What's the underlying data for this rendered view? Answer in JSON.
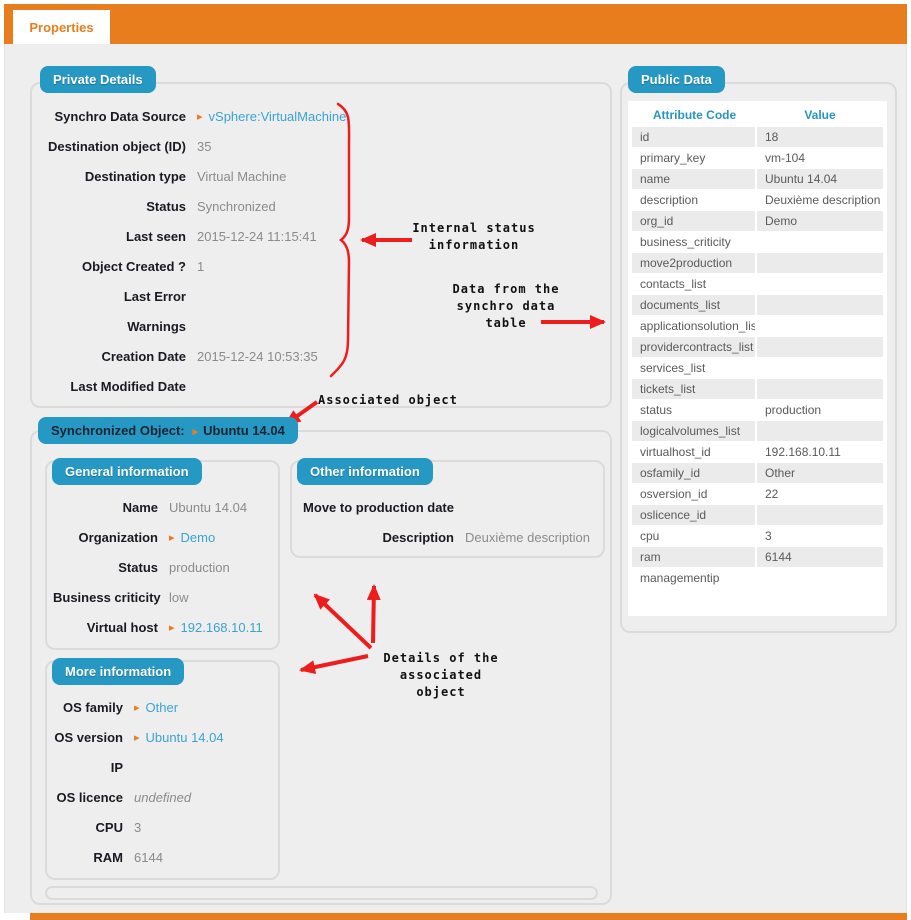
{
  "tab": {
    "label": "Properties"
  },
  "icons": {
    "link_arrow": "▸"
  },
  "colors": {
    "orange": "#e87d1e",
    "badge_blue": "#2698c4",
    "link_blue": "#3aa3d3",
    "table_header_blue": "#2596be",
    "annotation_red": "#ee1d1d"
  },
  "private_details": {
    "title": "Private Details",
    "fields": [
      {
        "label": "Synchro Data Source",
        "value": "vSphere:VirtualMachine",
        "link": true
      },
      {
        "label": "Destination object (ID)",
        "value": "35"
      },
      {
        "label": "Destination type",
        "value": "Virtual Machine"
      },
      {
        "label": "Status",
        "value": "Synchronized"
      },
      {
        "label": "Last seen",
        "value": "2015-12-24 11:15:41"
      },
      {
        "label": "Object Created ?",
        "value": "1"
      },
      {
        "label": "Last Error",
        "value": ""
      },
      {
        "label": "Warnings",
        "value": ""
      },
      {
        "label": "Creation Date",
        "value": "2015-12-24 10:53:35"
      },
      {
        "label": "Last Modified Date",
        "value": ""
      }
    ]
  },
  "synchronized_object": {
    "title": "Synchronized Object:",
    "object_name": "Ubuntu 14.04",
    "general_information": {
      "title": "General information",
      "fields": [
        {
          "label": "Name",
          "value": "Ubuntu 14.04"
        },
        {
          "label": "Organization",
          "value": "Demo",
          "link": true
        },
        {
          "label": "Status",
          "value": "production"
        },
        {
          "label": "Business criticity",
          "value": "low"
        },
        {
          "label": "Virtual host",
          "value": "192.168.10.11",
          "link": true
        }
      ]
    },
    "other_information": {
      "title": "Other information",
      "fields": [
        {
          "label": "Move to production date",
          "value": ""
        },
        {
          "label": "Description",
          "value": "Deuxième description"
        }
      ]
    },
    "more_information": {
      "title": "More information",
      "fields": [
        {
          "label": "OS family",
          "value": "Other",
          "link": true
        },
        {
          "label": "OS version",
          "value": "Ubuntu 14.04",
          "link": true
        },
        {
          "label": "IP",
          "value": ""
        },
        {
          "label": "OS licence",
          "value": "undefined",
          "italic": true
        },
        {
          "label": "CPU",
          "value": "3"
        },
        {
          "label": "RAM",
          "value": "6144"
        }
      ]
    }
  },
  "public_data": {
    "title": "Public Data",
    "columns": [
      "Attribute Code",
      "Value"
    ],
    "rows": [
      [
        "id",
        "18"
      ],
      [
        "primary_key",
        "vm-104"
      ],
      [
        "name",
        "Ubuntu 14.04"
      ],
      [
        "description",
        "Deuxième description"
      ],
      [
        "org_id",
        "Demo"
      ],
      [
        "business_criticity",
        ""
      ],
      [
        "move2production",
        ""
      ],
      [
        "contacts_list",
        ""
      ],
      [
        "documents_list",
        ""
      ],
      [
        "applicationsolution_list",
        ""
      ],
      [
        "providercontracts_list",
        ""
      ],
      [
        "services_list",
        ""
      ],
      [
        "tickets_list",
        ""
      ],
      [
        "status",
        "production"
      ],
      [
        "logicalvolumes_list",
        ""
      ],
      [
        "virtualhost_id",
        "192.168.10.11"
      ],
      [
        "osfamily_id",
        "Other"
      ],
      [
        "osversion_id",
        "22"
      ],
      [
        "oslicence_id",
        ""
      ],
      [
        "cpu",
        "3"
      ],
      [
        "ram",
        "6144"
      ],
      [
        "managementip",
        ""
      ]
    ]
  },
  "annotations": {
    "internal_status": {
      "lines": [
        "Internal status",
        "information"
      ]
    },
    "synchro_table": {
      "lines": [
        "Data from the",
        "synchro data",
        "table"
      ]
    },
    "associated_object": {
      "lines": [
        "Associated object"
      ]
    },
    "details": {
      "lines": [
        "Details of the",
        "associated",
        "object"
      ]
    }
  }
}
